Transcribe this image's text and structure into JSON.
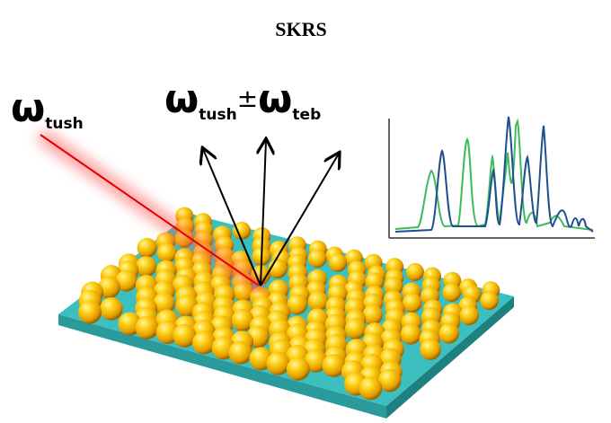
{
  "title": "SKRS",
  "incident": {
    "symbol": "ω",
    "subscript": "tush"
  },
  "scattered": {
    "symbol": "ω",
    "subscript": "tush",
    "operator": "±",
    "symbol2": "ω",
    "subscript2": "teb"
  }
}
